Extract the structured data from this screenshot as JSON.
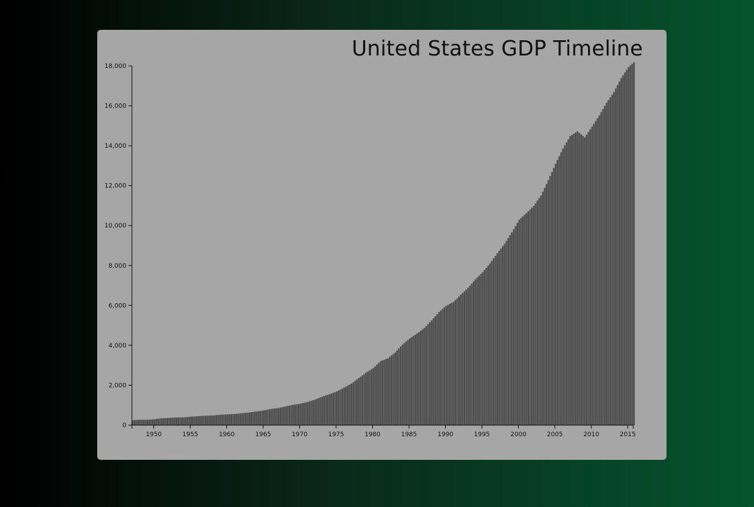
{
  "chart_data": {
    "type": "bar",
    "title": "United States GDP Timeline",
    "xlabel": "",
    "ylabel": "",
    "x_range": [
      1947,
      2015.75
    ],
    "ylim": [
      0,
      18000
    ],
    "y_ticks": [
      0,
      2000,
      4000,
      6000,
      8000,
      10000,
      12000,
      14000,
      16000,
      18000
    ],
    "y_tick_labels": [
      "0",
      "2,000",
      "4,000",
      "6,000",
      "8,000",
      "10,000",
      "12,000",
      "14,000",
      "16,000",
      "18,000"
    ],
    "x_ticks": [
      1950,
      1955,
      1960,
      1965,
      1970,
      1975,
      1980,
      1985,
      1990,
      1995,
      2000,
      2005,
      2010,
      2015
    ],
    "x_tick_labels": [
      "1950",
      "1955",
      "1960",
      "1965",
      "1970",
      "1975",
      "1980",
      "1985",
      "1990",
      "1995",
      "2000",
      "2005",
      "2010",
      "2015"
    ],
    "frequency": "quarterly",
    "series_years": [
      1947,
      1948,
      1949,
      1950,
      1951,
      1952,
      1953,
      1954,
      1955,
      1956,
      1957,
      1958,
      1959,
      1960,
      1961,
      1962,
      1963,
      1964,
      1965,
      1966,
      1967,
      1968,
      1969,
      1970,
      1971,
      1972,
      1973,
      1974,
      1975,
      1976,
      1977,
      1978,
      1979,
      1980,
      1981,
      1982,
      1983,
      1984,
      1985,
      1986,
      1987,
      1988,
      1989,
      1990,
      1991,
      1992,
      1993,
      1994,
      1995,
      1996,
      1997,
      1998,
      1999,
      2000,
      2001,
      2002,
      2003,
      2004,
      2005,
      2006,
      2007,
      2008,
      2009,
      2010,
      2011,
      2012,
      2013,
      2014,
      2015
    ],
    "annual_values": [
      245,
      270,
      270,
      300,
      345,
      365,
      385,
      390,
      425,
      450,
      475,
      485,
      520,
      540,
      560,
      600,
      635,
      685,
      740,
      815,
      860,
      940,
      1020,
      1075,
      1165,
      1280,
      1430,
      1550,
      1690,
      1880,
      2085,
      2355,
      2630,
      2860,
      3210,
      3345,
      3640,
      4040,
      4345,
      4590,
      4870,
      5250,
      5660,
      5980,
      6175,
      6540,
      6880,
      7310,
      7665,
      8100,
      8610,
      9090,
      9660,
      10290,
      10625,
      10980,
      11510,
      12275,
      13095,
      13860,
      14480,
      14720,
      14420,
      14960,
      15520,
      16160,
      16690,
      17390,
      17940
    ],
    "color": "#4d4d4d"
  }
}
